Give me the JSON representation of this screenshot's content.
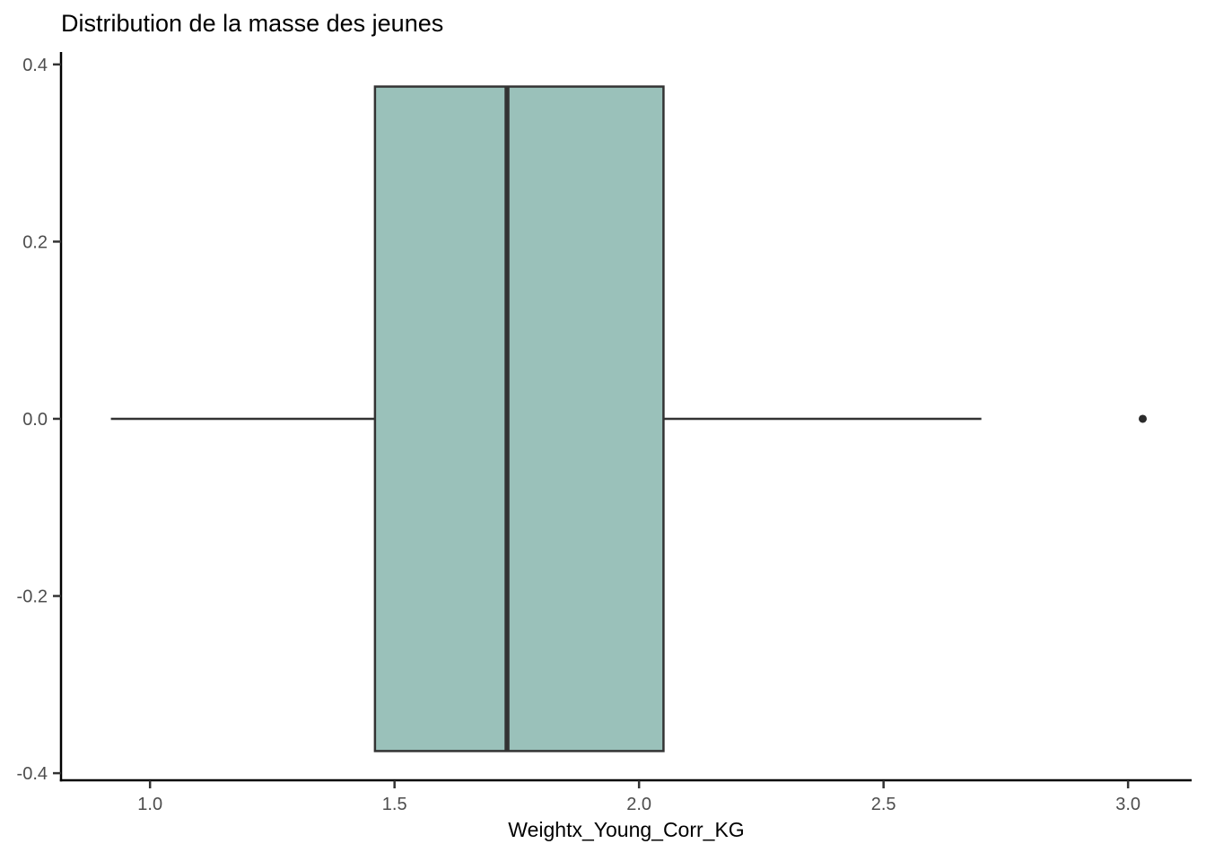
{
  "chart_data": {
    "type": "boxplot",
    "orientation": "horizontal",
    "title": "Distribution de la masse des jeunes",
    "xlabel": "Weightx_Young_Corr_KG",
    "ylabel": "",
    "grid": false,
    "legend": "none",
    "xlim": [
      0.818,
      3.13
    ],
    "ylim": [
      -0.408,
      0.414
    ],
    "x_ticks": [
      {
        "value": 1.0,
        "label": "1.0"
      },
      {
        "value": 1.5,
        "label": "1.5"
      },
      {
        "value": 2.0,
        "label": "2.0"
      },
      {
        "value": 2.5,
        "label": "2.5"
      },
      {
        "value": 3.0,
        "label": "3.0"
      }
    ],
    "y_ticks": [
      {
        "value": 0.4,
        "label": "0.4"
      },
      {
        "value": 0.2,
        "label": "0.2"
      },
      {
        "value": 0.0,
        "label": "0.0"
      },
      {
        "value": -0.2,
        "label": "-0.2"
      },
      {
        "value": -0.4,
        "label": "-0.4"
      }
    ],
    "box": {
      "whisker_min": 0.92,
      "q1": 1.46,
      "median": 1.73,
      "q3": 2.05,
      "whisker_max": 2.7,
      "outliers": [
        3.03
      ],
      "center_y": 0,
      "half_height": 0.375
    },
    "colors": {
      "box_fill": "#9AC1BA",
      "box_stroke": "#333333",
      "median_stroke": "#333333",
      "whisker_stroke": "#333333",
      "outlier_fill": "#2B2B2B",
      "axis_line": "#000000",
      "tick_mark": "#333333",
      "tick_label": "#4D4D4D",
      "title_color": "#000000"
    }
  }
}
